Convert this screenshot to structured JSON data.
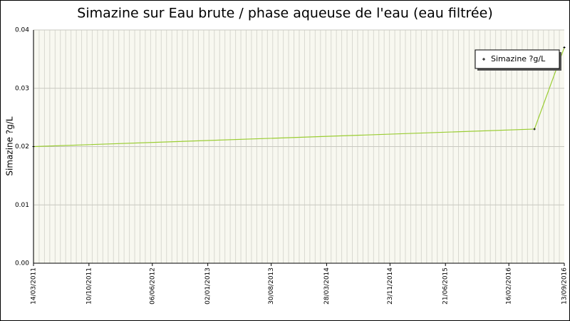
{
  "chart_data": {
    "type": "line",
    "title": "Simazine sur Eau brute / phase aqueuse de l'eau (eau filtrée)",
    "y_label": "Simazine ?g/L",
    "x": [
      "2011-03-14",
      "2016-05-23",
      "2016-09-13"
    ],
    "series": [
      {
        "name": "Simazine ?g/L",
        "color": "#9acd32",
        "values": [
          0.02,
          0.023,
          0.037
        ]
      }
    ],
    "xlim": [
      "2011-03-14",
      "2016-09-13"
    ],
    "xticks": [
      {
        "value": "2011-03-14",
        "label": "14/03/2011"
      },
      {
        "value": "2011-10-10",
        "label": "10/10/2011"
      },
      {
        "value": "2012-06-06",
        "label": "06/06/2012"
      },
      {
        "value": "2013-01-02",
        "label": "02/01/2013"
      },
      {
        "value": "2013-08-30",
        "label": "30/08/2013"
      },
      {
        "value": "2014-03-28",
        "label": "28/03/2014"
      },
      {
        "value": "2014-11-23",
        "label": "23/11/2014"
      },
      {
        "value": "2015-06-21",
        "label": "21/06/2015"
      },
      {
        "value": "2016-02-16",
        "label": "16/02/2016"
      },
      {
        "value": "2016-09-13",
        "label": "13/09/2016"
      }
    ],
    "ylim": [
      0,
      0.04
    ],
    "yticks": [
      {
        "value": 0,
        "label": "0.00"
      },
      0.01,
      0.02,
      0.03,
      0.04
    ],
    "grid": true,
    "legend": "upper right"
  }
}
